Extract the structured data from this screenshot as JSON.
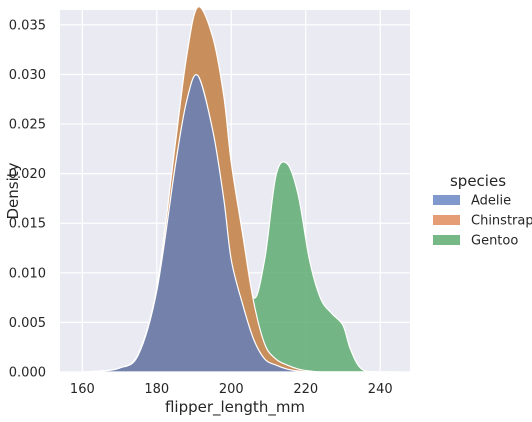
{
  "chart_data": {
    "type": "area",
    "stacked": true,
    "xlabel": "flipper_length_mm",
    "ylabel": "Density",
    "xlim": [
      154,
      248
    ],
    "ylim": [
      0,
      0.0365
    ],
    "xticks": [
      160,
      180,
      200,
      220,
      240
    ],
    "yticks": [
      0.0,
      0.005,
      0.01,
      0.015,
      0.02,
      0.025,
      0.03,
      0.035
    ],
    "ytick_labels": [
      "0.000",
      "0.005",
      "0.010",
      "0.015",
      "0.020",
      "0.025",
      "0.030",
      "0.035"
    ],
    "grid": true,
    "legend_title": "species",
    "legend_position": "right",
    "x": [
      160,
      165,
      170,
      175,
      180,
      185,
      188,
      191,
      195,
      198,
      200,
      203,
      206,
      209,
      212,
      215,
      218,
      221,
      224,
      227,
      230,
      232,
      235,
      240,
      245
    ],
    "series": [
      {
        "name": "Adelie",
        "color": "#5f7fbf",
        "values": [
          0.0,
          0.0001,
          0.0004,
          0.0017,
          0.0082,
          0.0209,
          0.0273,
          0.0299,
          0.0244,
          0.0174,
          0.0113,
          0.0069,
          0.0033,
          0.0013,
          0.0007,
          0.0003,
          0.0001,
          0.0,
          0.0,
          0.0,
          0.0,
          0.0,
          0.0,
          0.0,
          0.0
        ]
      },
      {
        "name": "Chinstrap",
        "color": "#dd8452",
        "values": [
          0.0,
          0.0,
          0.0,
          0.0001,
          0.0003,
          0.0022,
          0.0045,
          0.0069,
          0.0094,
          0.0104,
          0.0098,
          0.0071,
          0.0038,
          0.0015,
          0.0006,
          0.0004,
          0.0002,
          0.0001,
          0.0,
          0.0,
          0.0,
          0.0,
          0.0,
          0.0,
          0.0
        ]
      },
      {
        "name": "Gentoo",
        "color": "#55a868",
        "values": [
          0.0,
          0.0,
          0.0,
          0.0,
          0.0,
          0.0,
          0.0,
          0.0,
          0.0,
          0.0,
          0.0,
          0.0001,
          0.0004,
          0.0086,
          0.0185,
          0.0203,
          0.0175,
          0.0112,
          0.0074,
          0.0059,
          0.0047,
          0.0023,
          0.0003,
          0.0,
          0.0
        ]
      }
    ]
  }
}
